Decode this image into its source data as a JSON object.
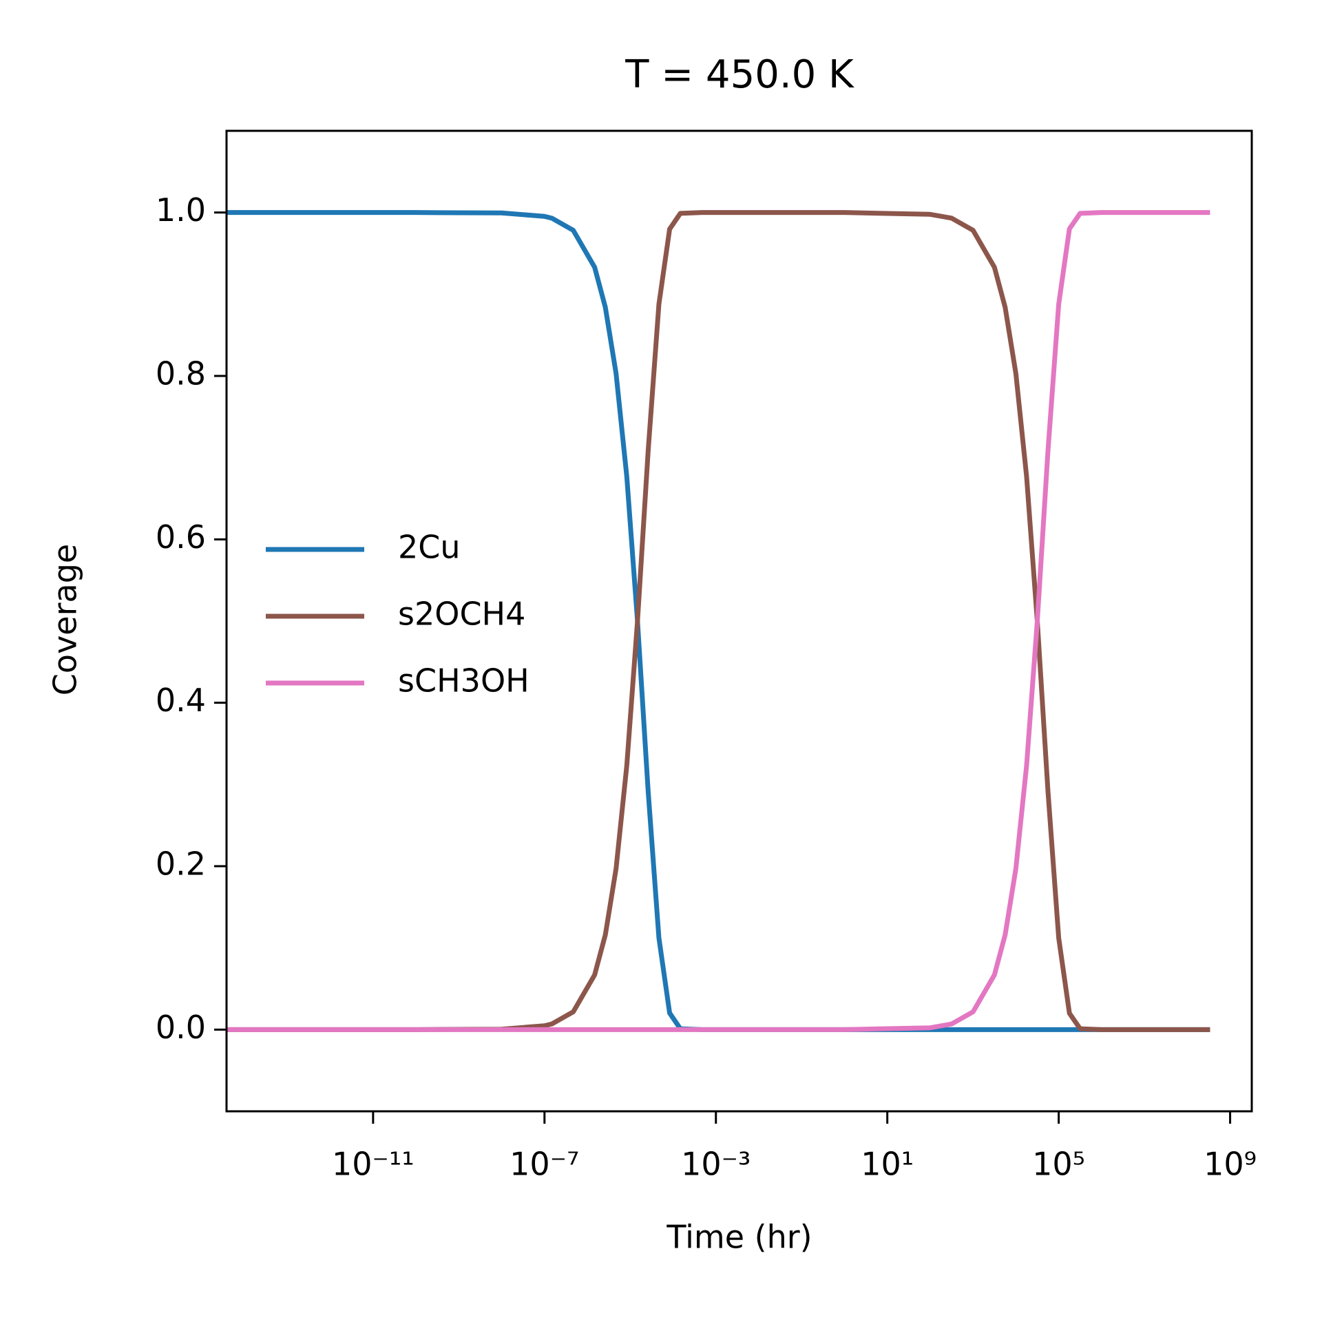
{
  "chart_data": {
    "type": "line",
    "title": "T = 450.0 K",
    "xlabel": "Time (hr)",
    "ylabel": "Coverage",
    "xscale": "log",
    "legend": "center left",
    "xlim": [
      3.8e-15,
      3200000000.0
    ],
    "xticks": [
      {
        "value": 1e-11,
        "label": "10⁻¹¹"
      },
      {
        "value": 1e-07,
        "label": "10⁻⁷"
      },
      {
        "value": 0.001,
        "label": "10⁻³"
      },
      {
        "value": 10,
        "label": "10¹"
      },
      {
        "value": 100000,
        "label": "10⁵"
      },
      {
        "value": 1000000000,
        "label": "10⁹"
      }
    ],
    "ylim": [
      -0.1,
      1.1
    ],
    "yticks": [
      {
        "value": 0,
        "label": "0.0"
      },
      0.2,
      0.4,
      0.6,
      0.8,
      {
        "value": 1,
        "label": "1.0"
      }
    ],
    "x": [
      3.8e-15,
      1e-10,
      1e-08,
      1e-07,
      1.48e-07,
      4.68e-07,
      1.48e-06,
      2.63e-06,
      4.68e-06,
      8.32e-06,
      1.48e-05,
      2.63e-05,
      4.68e-05,
      8.32e-05,
      0.000148,
      0.000468,
      0.01,
      1,
      100,
      316,
      1000,
      3162,
      5623,
      10000,
      17783,
      31623,
      56234,
      100000,
      177828,
      316228,
      1000000,
      10000000,
      340000000
    ],
    "series": [
      {
        "name": "2Cu",
        "color": "#1f77b4",
        "values": [
          1,
          1,
          0.9995,
          0.9953,
          0.9931,
          0.9783,
          0.933,
          0.884,
          0.803,
          0.677,
          0.5,
          0.291,
          0.112,
          0.0203,
          0.001,
          0,
          0,
          0,
          0,
          0,
          0,
          0,
          0,
          0,
          0,
          0,
          0,
          0,
          0,
          0,
          0,
          0,
          0
        ]
      },
      {
        "name": "s2OCH4",
        "color": "#8c564b",
        "values": [
          0,
          0,
          0.0005,
          0.0047,
          0.0069,
          0.0217,
          0.067,
          0.116,
          0.197,
          0.323,
          0.5,
          0.709,
          0.888,
          0.9797,
          0.999,
          1,
          1,
          1,
          0.9978,
          0.9931,
          0.9783,
          0.933,
          0.884,
          0.803,
          0.677,
          0.5,
          0.291,
          0.112,
          0.02,
          0.001,
          0,
          0,
          0
        ]
      },
      {
        "name": "sCH3OH",
        "color": "#e377c2",
        "values": [
          0,
          0,
          0,
          0,
          0,
          0,
          0,
          0,
          0,
          0,
          0,
          0,
          0,
          0,
          0,
          0,
          0,
          0,
          0.0022,
          0.0069,
          0.0217,
          0.067,
          0.116,
          0.197,
          0.323,
          0.5,
          0.709,
          0.888,
          0.98,
          0.999,
          1,
          1,
          1
        ]
      }
    ]
  }
}
